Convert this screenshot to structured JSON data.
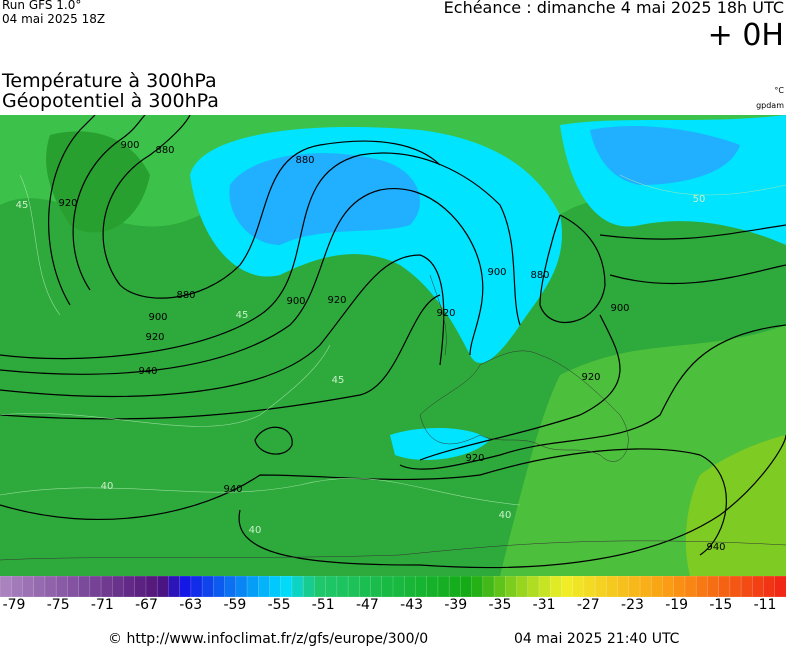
{
  "header": {
    "run": "Run GFS 1.0°",
    "date": "04 mai 2025 18Z",
    "echeance": "Echéance : dimanche 4 mai 2025 18h UTC",
    "offset": "+ 0H"
  },
  "titles": {
    "temperature": "Température à 300hPa",
    "geopotential": "Géopotentiel à 300hPa",
    "temperature_unit": "°C",
    "geopotential_unit": "gpdam"
  },
  "map": {
    "contour_labels": [
      "900",
      "880",
      "920",
      "880",
      "900",
      "920",
      "940",
      "880",
      "900",
      "920",
      "900",
      "920",
      "880",
      "900",
      "920",
      "940",
      "920",
      "940",
      "45",
      "45",
      "45",
      "40",
      "40",
      "40",
      "50"
    ]
  },
  "colorbar": {
    "labels": [
      "-79",
      "-75",
      "-71",
      "-67",
      "-63",
      "-59",
      "-55",
      "-51",
      "-47",
      "-43",
      "-39",
      "-35",
      "-31",
      "-27",
      "-23",
      "-19",
      "-15",
      "-11"
    ]
  },
  "footer": {
    "url": "© http://www.infoclimat.fr/z/gfs/europe/300/0",
    "generated": "04 mai 2025 21:40 UTC"
  }
}
